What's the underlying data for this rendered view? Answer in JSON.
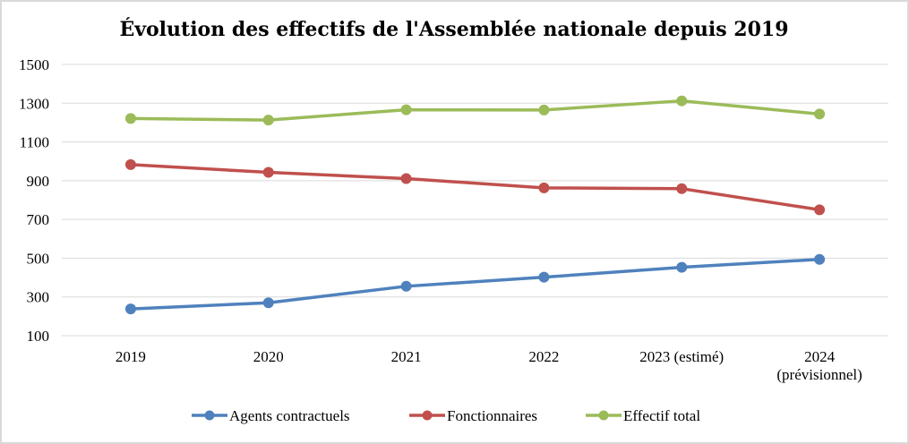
{
  "chart_data": {
    "type": "line",
    "title": "Évolution des effectifs de l'Assemblée nationale depuis 2019",
    "xlabel": "",
    "ylabel": "",
    "categories": [
      "2019",
      "2020",
      "2021",
      "2022",
      "2023 (estimé)",
      "2024 (prévisionnel)"
    ],
    "category_lines": [
      [
        "2019"
      ],
      [
        "2020"
      ],
      [
        "2021"
      ],
      [
        "2022"
      ],
      [
        "2023 (estimé)"
      ],
      [
        "2024",
        "(prévisionnel)"
      ]
    ],
    "ylim": [
      100,
      1500
    ],
    "yticks": [
      100,
      300,
      500,
      700,
      900,
      1100,
      1300,
      1500
    ],
    "grid": true,
    "legend_position": "bottom",
    "series": [
      {
        "name": "Agents contractuels",
        "color": "#4f81bd",
        "values": [
          238,
          270,
          355,
          402,
          453,
          494
        ]
      },
      {
        "name": "Fonctionnaires",
        "color": "#c0504d",
        "values": [
          983,
          943,
          911,
          863,
          859,
          750
        ]
      },
      {
        "name": "Effectif total",
        "color": "#9bbb59",
        "values": [
          1221,
          1213,
          1266,
          1265,
          1312,
          1244
        ]
      }
    ]
  }
}
